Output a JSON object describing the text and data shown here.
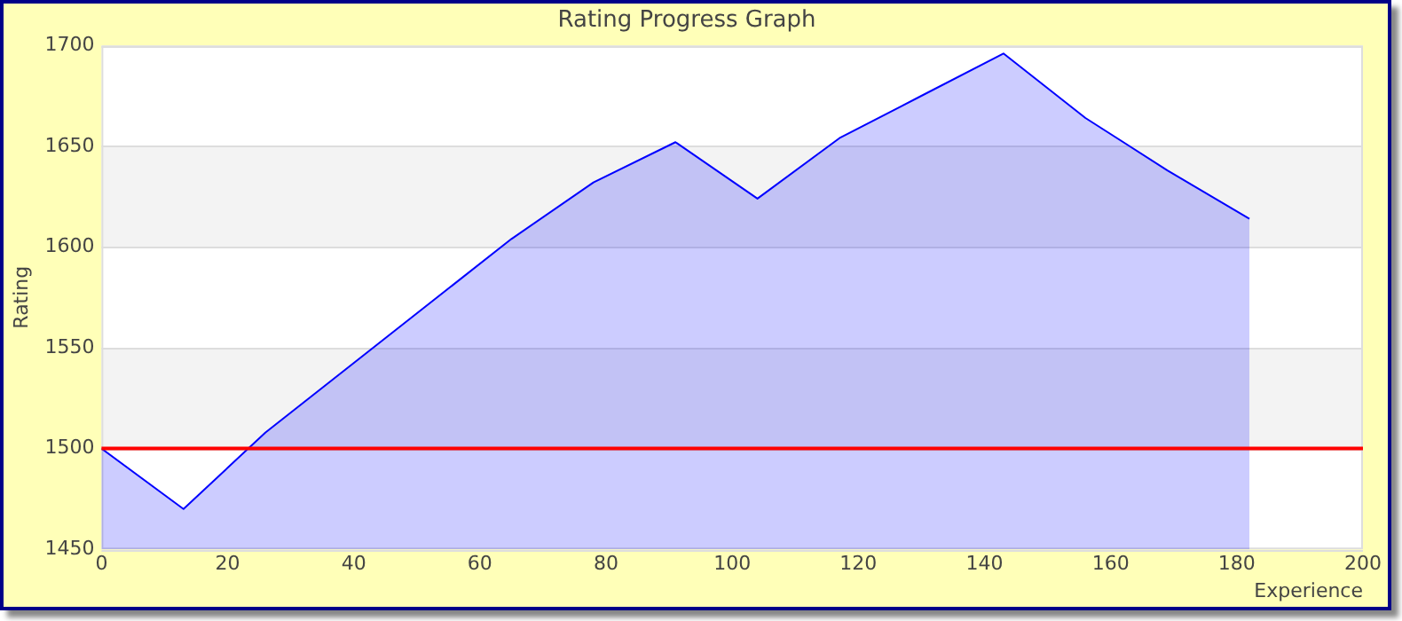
{
  "chart_data": {
    "type": "area",
    "title": "Rating Progress Graph",
    "xlabel": "Experience",
    "ylabel": "Rating",
    "x": [
      0,
      13,
      26,
      65,
      78,
      91,
      104,
      117,
      130,
      143,
      156,
      169,
      182
    ],
    "series": [
      {
        "color": "#0000ff",
        "values": [
          1500,
          1470,
          1508,
          1604,
          1632,
          1652,
          1624,
          1654,
          1675,
          1696,
          1664,
          1638,
          1614
        ]
      }
    ],
    "xlim": [
      0,
      200
    ],
    "xticks": [
      0,
      20,
      40,
      60,
      80,
      100,
      120,
      140,
      160,
      180,
      200
    ],
    "ylim": [
      1450,
      1700
    ],
    "yticks": [
      1450,
      1500,
      1550,
      1600,
      1650,
      1700
    ],
    "ref_lines": [
      {
        "axis": "y",
        "value": 1500,
        "color": "#ff0000"
      }
    ],
    "grid": "y",
    "legend": false,
    "marker": "none"
  }
}
